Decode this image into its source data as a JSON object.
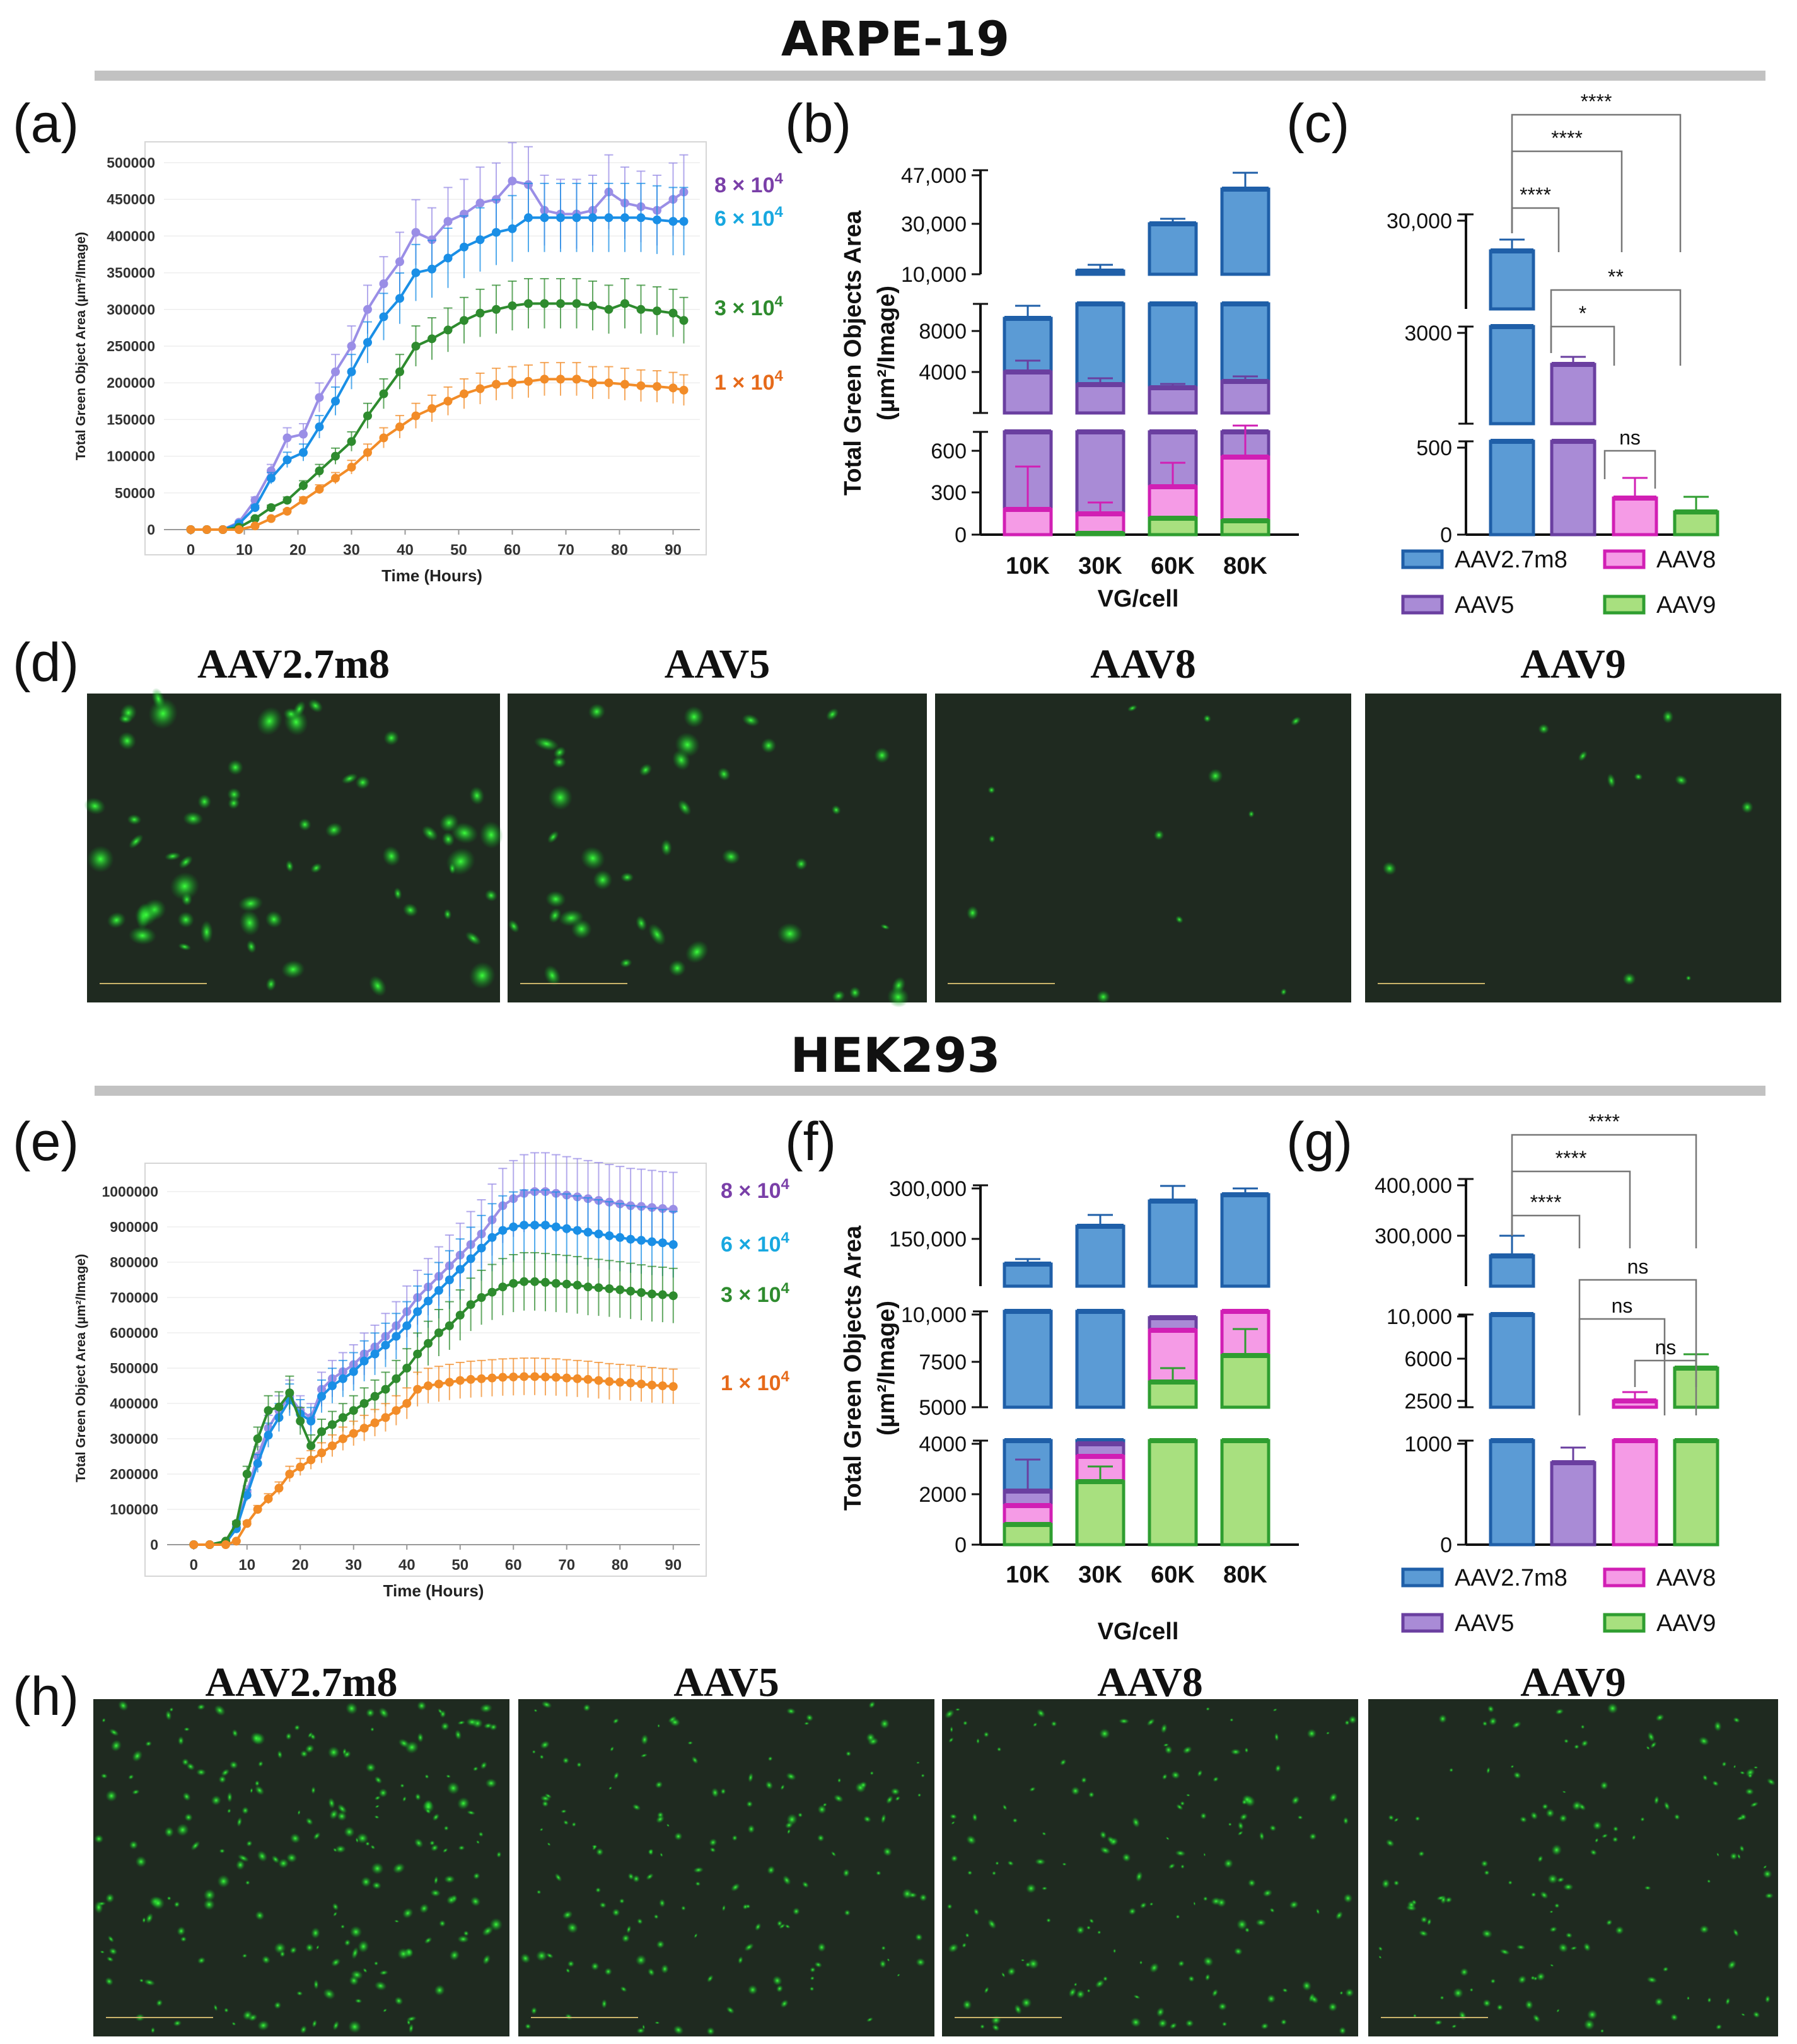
{
  "sections": [
    {
      "title": "ARPE-19"
    },
    {
      "title": "HEK293"
    }
  ],
  "panel_letters": [
    "(a)",
    "(b)",
    "(c)",
    "(d)",
    "(e)",
    "(f)",
    "(g)",
    "(h)"
  ],
  "colors": {
    "AAV2.7m8": "#5b9bd5",
    "AAV2.7m8_edge": "#1f5fa8",
    "AAV5": "#a98bd6",
    "AAV5_edge": "#6a3fa0",
    "AAV8": "#f59be6",
    "AAV8_edge": "#d11fb4",
    "AAV9": "#a8e07f",
    "AAV9_edge": "#2f9e30",
    "s8e4": "#9a8ee6",
    "s6e4": "#1a8fe6",
    "s3e4": "#2e8b2e",
    "s1e4": "#f28c28",
    "tag8": "#7a3fa8",
    "tag6": "#18a8e0",
    "tag3": "#2e8b2e",
    "tag1": "#e66a1a"
  },
  "micrograph_labels": [
    "AAV2.7m8",
    "AAV5",
    "AAV8",
    "AAV9"
  ],
  "chart_data": [
    {
      "id": "a",
      "type": "line",
      "xlabel": "Time (Hours)",
      "ylabel": "Total Green Object Area (µm²/Image)",
      "xlim": [
        -5,
        95
      ],
      "ylim": [
        0,
        500000
      ],
      "xticks": [
        "0",
        "10",
        "20",
        "30",
        "40",
        "50",
        "60",
        "70",
        "80",
        "90"
      ],
      "yticks": [
        "0",
        "50000",
        "100000",
        "150000",
        "200000",
        "250000",
        "300000",
        "350000",
        "400000",
        "450000",
        "500000"
      ],
      "series_tags": [
        {
          "label": "8 × 10",
          "exp": "4",
          "color": "tag8"
        },
        {
          "label": "6 × 10",
          "exp": "4",
          "color": "tag6"
        },
        {
          "label": "3 × 10",
          "exp": "4",
          "color": "tag3"
        },
        {
          "label": "1 × 10",
          "exp": "4",
          "color": "tag1"
        }
      ],
      "x": [
        0,
        3,
        6,
        9,
        12,
        15,
        18,
        21,
        24,
        27,
        30,
        33,
        36,
        39,
        42,
        45,
        48,
        51,
        54,
        57,
        60,
        63,
        66,
        69,
        72,
        75,
        78,
        81,
        84,
        87,
        90,
        92
      ],
      "series": [
        {
          "color": "s8e4",
          "values": [
            0,
            0,
            0,
            10000,
            40000,
            80000,
            125000,
            130000,
            180000,
            215000,
            250000,
            300000,
            335000,
            365000,
            405000,
            395000,
            420000,
            430000,
            445000,
            450000,
            475000,
            470000,
            435000,
            430000,
            430000,
            435000,
            460000,
            445000,
            440000,
            435000,
            450000,
            460000
          ]
        },
        {
          "color": "s6e4",
          "values": [
            0,
            0,
            0,
            8000,
            30000,
            70000,
            95000,
            105000,
            140000,
            175000,
            215000,
            255000,
            290000,
            315000,
            350000,
            355000,
            370000,
            385000,
            395000,
            405000,
            410000,
            425000,
            425000,
            425000,
            425000,
            425000,
            425000,
            425000,
            425000,
            422000,
            420000,
            420000
          ]
        },
        {
          "color": "s3e4",
          "values": [
            0,
            0,
            0,
            3000,
            15000,
            30000,
            40000,
            60000,
            80000,
            100000,
            120000,
            155000,
            185000,
            215000,
            250000,
            260000,
            272000,
            285000,
            295000,
            300000,
            305000,
            308000,
            308000,
            308000,
            308000,
            305000,
            300000,
            308000,
            300000,
            298000,
            295000,
            285000
          ]
        },
        {
          "color": "s1e4",
          "values": [
            0,
            0,
            0,
            0,
            5000,
            15000,
            25000,
            40000,
            55000,
            70000,
            85000,
            105000,
            125000,
            140000,
            155000,
            165000,
            175000,
            185000,
            192000,
            198000,
            200000,
            202000,
            205000,
            205000,
            205000,
            200000,
            200000,
            198000,
            196000,
            195000,
            193000,
            190000
          ]
        }
      ]
    },
    {
      "id": "b",
      "type": "bar",
      "xlabel": "VG/cell",
      "ylabel": "Total Green Objects Area",
      "ylabel2": "(µm²/Image)",
      "categories": [
        "10K",
        "30K",
        "60K",
        "80K"
      ],
      "segments": [
        {
          "ticks": [
            "10,000",
            "30,000",
            "47,000"
          ],
          "range": [
            10000,
            47000
          ]
        },
        {
          "ticks": [
            "4000",
            "8000"
          ],
          "range": [
            0,
            9500
          ]
        },
        {
          "ticks": [
            "0",
            "300",
            "600"
          ],
          "range": [
            0,
            720
          ]
        }
      ],
      "series": [
        {
          "name": "AAV2.7m8",
          "values": [
            7200,
            11000,
            28000,
            42000
          ]
        },
        {
          "name": "AAV5",
          "values": [
            3500,
            2300,
            2100,
            2500
          ]
        },
        {
          "name": "AAV8",
          "values": [
            180,
            140,
            330,
            560
          ]
        },
        {
          "name": "AAV9",
          "values": [
            0,
            20,
            120,
            100
          ]
        }
      ]
    },
    {
      "id": "c",
      "type": "bar",
      "segments": [
        {
          "ticks": [
            "30,000"
          ]
        },
        {
          "ticks": [
            "3000"
          ]
        },
        {
          "ticks": [
            "0",
            "500"
          ]
        }
      ],
      "categories": [
        "AAV2.7m8",
        "AAV5",
        "AAV8",
        "AAV9"
      ],
      "values": [
        23000,
        2200,
        210,
        130
      ],
      "significance": [
        "****",
        "****",
        "****",
        "**",
        "*",
        "ns"
      ],
      "legend": [
        "AAV2.7m8",
        "AAV8",
        "AAV5",
        "AAV9"
      ]
    },
    {
      "id": "e",
      "type": "line",
      "xlabel": "Time (Hours)",
      "ylabel": "Total Green Object Area (µm²/Image)",
      "xlim": [
        -5,
        95
      ],
      "ylim": [
        0,
        1000000
      ],
      "xticks": [
        "0",
        "10",
        "20",
        "30",
        "40",
        "50",
        "60",
        "70",
        "80",
        "90"
      ],
      "yticks": [
        "0",
        "100000",
        "200000",
        "300000",
        "400000",
        "500000",
        "600000",
        "700000",
        "800000",
        "900000",
        "1000000"
      ],
      "series_tags": [
        {
          "label": "8 × 10",
          "exp": "4",
          "color": "tag8"
        },
        {
          "label": "6 × 10",
          "exp": "4",
          "color": "tag6"
        },
        {
          "label": "3 × 10",
          "exp": "4",
          "color": "tag3"
        },
        {
          "label": "1 × 10",
          "exp": "4",
          "color": "tag1"
        }
      ],
      "x": [
        0,
        3,
        6,
        8,
        10,
        12,
        14,
        16,
        18,
        20,
        22,
        24,
        26,
        28,
        30,
        32,
        34,
        36,
        38,
        40,
        42,
        44,
        46,
        48,
        50,
        52,
        54,
        56,
        58,
        60,
        62,
        64,
        66,
        68,
        70,
        72,
        74,
        76,
        78,
        80,
        82,
        84,
        86,
        88,
        90
      ],
      "series": [
        {
          "color": "s8e4",
          "values": [
            0,
            0,
            5000,
            50000,
            150000,
            250000,
            330000,
            380000,
            420000,
            380000,
            360000,
            440000,
            470000,
            490000,
            510000,
            540000,
            560000,
            590000,
            620000,
            660000,
            700000,
            730000,
            760000,
            790000,
            820000,
            850000,
            880000,
            920000,
            960000,
            980000,
            995000,
            1000000,
            1000000,
            995000,
            990000,
            985000,
            980000,
            975000,
            970000,
            965000,
            960000,
            958000,
            955000,
            952000,
            950000
          ]
        },
        {
          "color": "s6e4",
          "values": [
            0,
            0,
            5000,
            45000,
            140000,
            230000,
            310000,
            360000,
            410000,
            370000,
            350000,
            420000,
            450000,
            470000,
            490000,
            520000,
            540000,
            565000,
            590000,
            620000,
            660000,
            690000,
            720000,
            750000,
            780000,
            810000,
            840000,
            870000,
            890000,
            900000,
            905000,
            905000,
            905000,
            900000,
            895000,
            890000,
            885000,
            880000,
            875000,
            870000,
            865000,
            862000,
            858000,
            855000,
            850000
          ]
        },
        {
          "color": "s3e4",
          "values": [
            0,
            0,
            10000,
            60000,
            200000,
            300000,
            380000,
            390000,
            430000,
            350000,
            280000,
            320000,
            340000,
            360000,
            380000,
            400000,
            420000,
            440000,
            470000,
            500000,
            540000,
            570000,
            600000,
            620000,
            650000,
            680000,
            700000,
            715000,
            730000,
            740000,
            745000,
            745000,
            743000,
            740000,
            738000,
            735000,
            730000,
            728000,
            725000,
            722000,
            718000,
            714000,
            710000,
            708000,
            705000
          ]
        },
        {
          "color": "s1e4",
          "values": [
            0,
            0,
            0,
            10000,
            60000,
            100000,
            130000,
            160000,
            200000,
            220000,
            240000,
            260000,
            280000,
            300000,
            315000,
            330000,
            345000,
            360000,
            380000,
            400000,
            440000,
            450000,
            455000,
            460000,
            465000,
            468000,
            470000,
            472000,
            474000,
            475000,
            476000,
            476000,
            475000,
            474000,
            472000,
            470000,
            468000,
            465000,
            462000,
            460000,
            458000,
            455000,
            452000,
            450000,
            448000
          ]
        }
      ]
    },
    {
      "id": "f",
      "type": "bar",
      "xlabel": "VG/cell",
      "ylabel": "Total Green Objects Area",
      "ylabel2": "(µm²/Image)",
      "categories": [
        "10K",
        "30K",
        "60K",
        "80K"
      ],
      "segments": [
        {
          "ticks": [
            "150,000",
            "300,000"
          ]
        },
        {
          "ticks": [
            "5000",
            "7500",
            "10,000"
          ]
        },
        {
          "ticks": [
            "0",
            "2000",
            "4000"
          ]
        }
      ],
      "series": [
        {
          "name": "AAV2.7m8",
          "values": [
            120000,
            185000,
            270000,
            280000
          ]
        },
        {
          "name": "AAV5",
          "values": [
            2200,
            4100,
            8600,
            0
          ]
        },
        {
          "name": "AAV8",
          "values": [
            1500,
            3700,
            7800,
            10000
          ]
        },
        {
          "name": "AAV9",
          "values": [
            700,
            2500,
            5100,
            6500
          ]
        }
      ]
    },
    {
      "id": "g",
      "type": "bar",
      "segments": [
        {
          "ticks": [
            "300,000",
            "400,000"
          ]
        },
        {
          "ticks": [
            "2500",
            "6000",
            "10,000"
          ]
        },
        {
          "ticks": [
            "0",
            "1000"
          ]
        }
      ],
      "categories": [
        "AAV2.7m8",
        "AAV5",
        "AAV8",
        "AAV9"
      ],
      "values": [
        260000,
        800,
        2500,
        5000
      ],
      "significance": [
        "****",
        "****",
        "****",
        "ns",
        "ns",
        "ns"
      ],
      "legend": [
        "AAV2.7m8",
        "AAV8",
        "AAV5",
        "AAV9"
      ]
    }
  ]
}
